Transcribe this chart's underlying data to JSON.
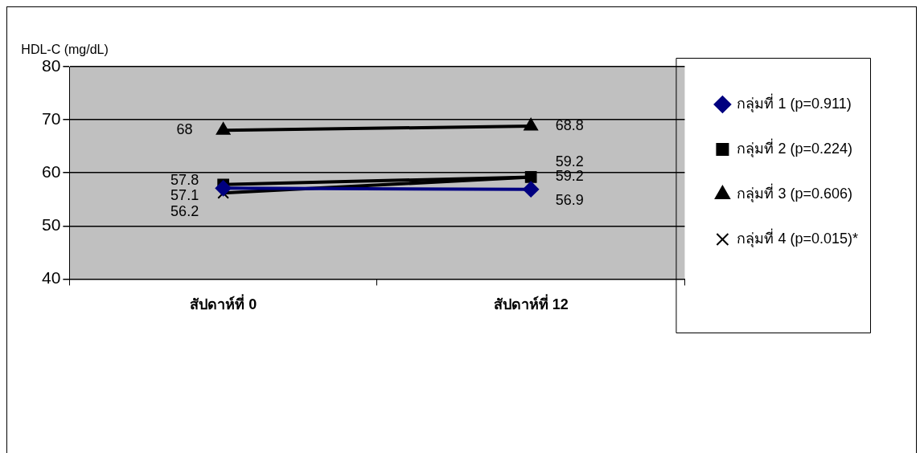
{
  "chart_data": {
    "type": "line",
    "ylabel": "HDL-C (mg/dL)",
    "categories": [
      "สัปดาห์ที่ 0",
      "สัปดาห์ที่ 12"
    ],
    "series": [
      {
        "name": "กลุ่มที่ 1 (p=0.911)",
        "color": "#000080",
        "values": [
          57.1,
          56.9
        ],
        "marker": "diamond"
      },
      {
        "name": "กลุ่มที่ 2 (p=0.224)",
        "color": "#000000",
        "values": [
          57.8,
          59.2
        ],
        "marker": "square"
      },
      {
        "name": "กลุ่มที่ 3 (p=0.606)",
        "color": "#000000",
        "values": [
          68,
          68.8
        ],
        "marker": "triangle"
      },
      {
        "name": "กลุ่มที่ 4 (p=0.015)*",
        "color": "#000000",
        "values": [
          56.2,
          59.2
        ],
        "marker": "cross"
      }
    ],
    "ylim": [
      40,
      80
    ],
    "yticks": [
      40,
      50,
      60,
      70,
      80
    ],
    "grid": "y",
    "legend": "right",
    "data_labels": true
  }
}
